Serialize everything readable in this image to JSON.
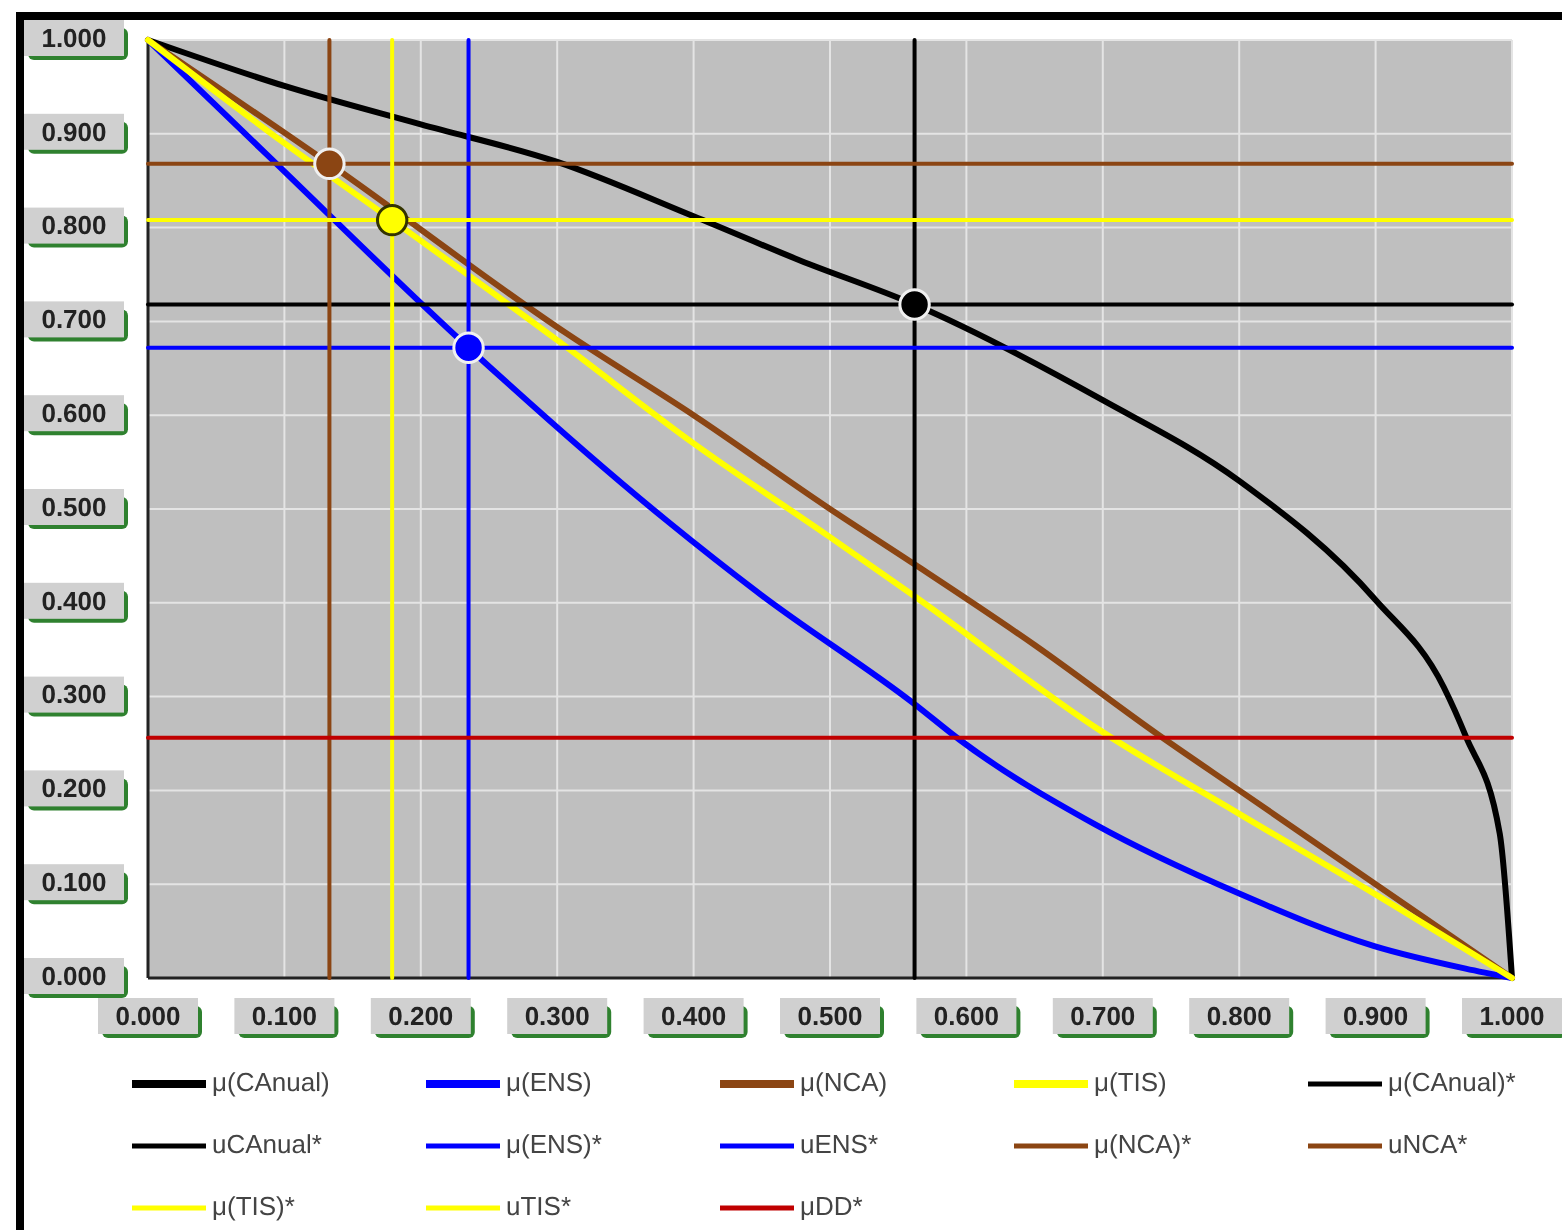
{
  "chart_data": {
    "type": "line",
    "xlim": [
      0,
      1
    ],
    "ylim": [
      0,
      1
    ],
    "xticks": [
      {
        "value": 0,
        "label": "0.000"
      },
      {
        "value": 0.1,
        "label": "0.100"
      },
      {
        "value": 0.2,
        "label": "0.200"
      },
      {
        "value": 0.3,
        "label": "0.300"
      },
      {
        "value": 0.4,
        "label": "0.400"
      },
      {
        "value": 0.5,
        "label": "0.500"
      },
      {
        "value": 0.6,
        "label": "0.600"
      },
      {
        "value": 0.7,
        "label": "0.700"
      },
      {
        "value": 0.8,
        "label": "0.800"
      },
      {
        "value": 0.9,
        "label": "0.900"
      },
      {
        "value": 1,
        "label": "1.000"
      }
    ],
    "yticks": [
      {
        "value": 0,
        "label": "0.000"
      },
      {
        "value": 0.1,
        "label": "0.100"
      },
      {
        "value": 0.2,
        "label": "0.200"
      },
      {
        "value": 0.3,
        "label": "0.300"
      },
      {
        "value": 0.4,
        "label": "0.400"
      },
      {
        "value": 0.5,
        "label": "0.500"
      },
      {
        "value": 0.6,
        "label": "0.600"
      },
      {
        "value": 0.7,
        "label": "0.700"
      },
      {
        "value": 0.8,
        "label": "0.800"
      },
      {
        "value": 0.9,
        "label": "0.900"
      },
      {
        "value": 1,
        "label": "1.000"
      }
    ],
    "grid": true,
    "legend": "bottom",
    "series": [
      {
        "name": "μ(CAnual)",
        "color": "#000000",
        "x": [
          0,
          0.1,
          0.2,
          0.3,
          0.4,
          0.478,
          0.562,
          0.7,
          0.8,
          0.9,
          0.95,
          0.966,
          0.991,
          1
        ],
        "values": [
          1,
          0.951,
          0.91,
          0.87,
          0.812,
          0.765,
          0.718,
          0.616,
          0.53,
          0.403,
          0.31,
          0.258,
          0.154,
          0
        ]
      },
      {
        "name": "μ(ENS)",
        "color": "#0000ff",
        "x": [
          0,
          0.087,
          0.235,
          0.38,
          0.449,
          0.562,
          0.595,
          0.694,
          0.8,
          0.899,
          0.966,
          1
        ],
        "values": [
          1,
          0.878,
          0.672,
          0.488,
          0.409,
          0.292,
          0.254,
          0.164,
          0.09,
          0.034,
          0.01,
          0
        ]
      },
      {
        "name": "μ(NCA)",
        "color": "#8b4513",
        "x": [
          0,
          0.133,
          0.307,
          0.4,
          0.5,
          0.562,
          0.65,
          0.742,
          0.8,
          0.9,
          1
        ],
        "values": [
          1,
          0.868,
          0.687,
          0.6,
          0.5,
          0.441,
          0.355,
          0.258,
          0.2,
          0.1,
          0
        ]
      },
      {
        "name": "μ(TIS)",
        "color": "#ffff00",
        "x": [
          0,
          0.1,
          0.179,
          0.3,
          0.4,
          0.5,
          0.562,
          0.698,
          0.8,
          0.899,
          1
        ],
        "values": [
          1,
          0.89,
          0.808,
          0.68,
          0.57,
          0.47,
          0.407,
          0.264,
          0.175,
          0.09,
          0
        ]
      },
      {
        "name": "μ(CAnual)*",
        "color": "#000000",
        "x": [
          0,
          1
        ],
        "values": [
          0.718,
          0.718
        ]
      },
      {
        "name": "uCAnual*",
        "color": "#000000",
        "x": [
          0.562,
          0.562
        ],
        "values": [
          0,
          1
        ]
      },
      {
        "name": "μ(ENS)*",
        "color": "#0000ff",
        "x": [
          0,
          1
        ],
        "values": [
          0.672,
          0.672
        ]
      },
      {
        "name": "uENS*",
        "color": "#0000ff",
        "x": [
          0.235,
          0.235
        ],
        "values": [
          0,
          1
        ]
      },
      {
        "name": "μ(NCA)*",
        "color": "#8b4513",
        "x": [
          0,
          1
        ],
        "values": [
          0.868,
          0.868
        ]
      },
      {
        "name": "uNCA*",
        "color": "#8b4513",
        "x": [
          0.133,
          0.133
        ],
        "values": [
          0,
          1
        ]
      },
      {
        "name": "μ(TIS)*",
        "color": "#ffff00",
        "x": [
          0,
          1
        ],
        "values": [
          0.808,
          0.808
        ]
      },
      {
        "name": "uTIS*",
        "color": "#ffff00",
        "x": [
          0.179,
          0.179
        ],
        "values": [
          0,
          1
        ]
      },
      {
        "name": "μDD*",
        "color": "#c00000",
        "x": [
          0,
          1
        ],
        "values": [
          0.256,
          0.256
        ]
      },
      {
        "type": "scatter",
        "marker": "circle",
        "color": "#000000",
        "x": [
          0.562
        ],
        "values": [
          0.718
        ]
      },
      {
        "type": "scatter",
        "marker": "circle",
        "color": "#0000ff",
        "x": [
          0.235
        ],
        "values": [
          0.672
        ]
      },
      {
        "type": "scatter",
        "marker": "circle",
        "color": "#8b4513",
        "x": [
          0.133
        ],
        "values": [
          0.868
        ]
      },
      {
        "type": "scatter",
        "marker": "circle",
        "color": "#ffff00",
        "x": [
          0.179
        ],
        "values": [
          0.808
        ]
      }
    ]
  }
}
